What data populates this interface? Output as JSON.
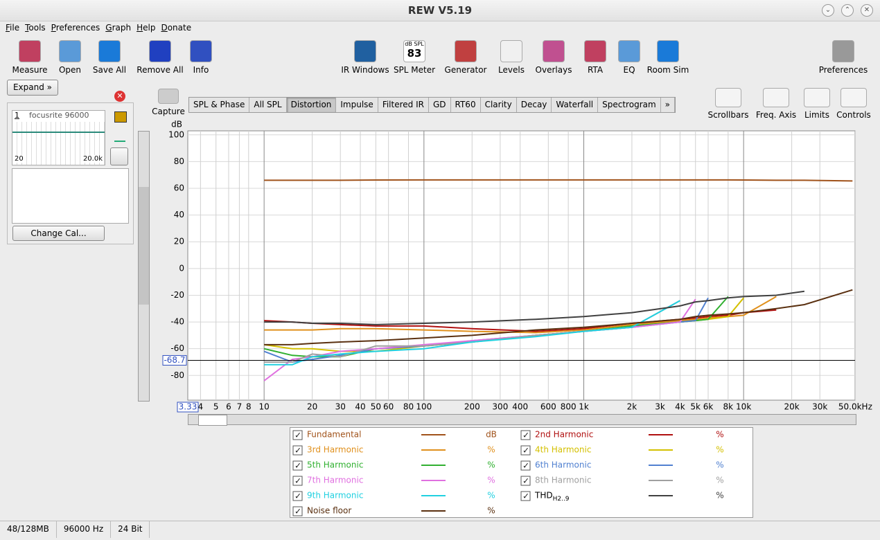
{
  "window": {
    "title": "REW V5.19"
  },
  "menu": [
    "File",
    "Tools",
    "Preferences",
    "Graph",
    "Help",
    "Donate"
  ],
  "toolbar_left": [
    "Measure",
    "Open",
    "Save All",
    "Remove All",
    "Info"
  ],
  "toolbar_mid": [
    "IR Windows",
    "SPL Meter",
    "Generator",
    "Levels",
    "Overlays",
    "RTA",
    "EQ",
    "Room Sim"
  ],
  "toolbar_right": [
    "Preferences"
  ],
  "spl_icon": {
    "label": "dB SPL",
    "value": "83"
  },
  "panel": {
    "expand": "Expand",
    "measurement_index": "1",
    "measurement_name": "focusrite 96000",
    "mini_x_start": "20",
    "mini_x_end": "20.0k",
    "change_cal": "Change Cal..."
  },
  "capture": "Capture",
  "tabs": [
    {
      "label": "SPL & Phase",
      "active": false
    },
    {
      "label": "All SPL",
      "active": false
    },
    {
      "label": "Distortion",
      "active": true
    },
    {
      "label": "Impulse",
      "active": false
    },
    {
      "label": "Filtered IR",
      "active": false
    },
    {
      "label": "GD",
      "active": false
    },
    {
      "label": "RT60",
      "active": false
    },
    {
      "label": "Clarity",
      "active": false
    },
    {
      "label": "Decay",
      "active": false
    },
    {
      "label": "Waterfall",
      "active": false
    },
    {
      "label": "Spectrogram",
      "active": false
    },
    {
      "label": "»",
      "active": false
    }
  ],
  "graph_tools": [
    "Scrollbars",
    "Freq. Axis",
    "Limits",
    "Controls"
  ],
  "status": [
    "48/128MB",
    "96000 Hz",
    "24 Bit"
  ],
  "chart_data": {
    "type": "line",
    "y_label": "dB",
    "x_scale": "log",
    "grid": true,
    "xlim": [
      3.33,
      49800
    ],
    "ylim": [
      -98.5,
      103
    ],
    "yticks": [
      -80,
      -60,
      -40,
      -20,
      0,
      20,
      40,
      60,
      80,
      100
    ],
    "xticks": [
      4,
      5,
      6,
      7,
      8,
      10,
      20,
      30,
      40,
      50,
      60,
      80,
      100,
      200,
      300,
      400,
      600,
      800,
      {
        "value": 1000,
        "label": "1k"
      },
      {
        "value": 2000,
        "label": "2k"
      },
      {
        "value": 3000,
        "label": "3k"
      },
      {
        "value": 4000,
        "label": "4k"
      },
      {
        "value": 5000,
        "label": "5k"
      },
      {
        "value": 6000,
        "label": "6k"
      },
      {
        "value": 8000,
        "label": "8k"
      },
      {
        "value": 10000,
        "label": "10k"
      },
      {
        "value": 20000,
        "label": "20k"
      },
      {
        "value": 30000,
        "label": "30k"
      },
      {
        "value": 50000,
        "label": "50.0kHz"
      }
    ],
    "cursor_y": -68.7,
    "x": [
      10,
      15,
      20,
      30,
      50,
      100,
      200,
      500,
      1000,
      2000,
      4000,
      5000,
      6000,
      8000,
      10000,
      16000,
      24000,
      48000
    ],
    "series": [
      {
        "name": "Fundamental",
        "color": "#a0521a",
        "unit": "dB",
        "values": [
          66,
          66,
          66,
          66,
          66.2,
          66.3,
          66.3,
          66.3,
          66.3,
          66.3,
          66.3,
          66.3,
          66.3,
          66.3,
          66.2,
          66,
          66,
          65.5
        ]
      },
      {
        "name": "2nd Harmonic",
        "color": "#b01010",
        "unit": "%",
        "values": [
          -39,
          -40,
          -41,
          -42,
          -43,
          -43,
          -45,
          -47,
          -45,
          -41,
          -38,
          -37,
          -36,
          -35,
          -33,
          -31,
          null,
          null
        ]
      },
      {
        "name": "3rd Harmonic",
        "color": "#e0901c",
        "unit": "%",
        "values": [
          -46,
          -46,
          -46,
          -45,
          -45,
          -46,
          -47,
          -48,
          -46,
          -42,
          -39,
          -38,
          -37,
          -36,
          -35,
          -21,
          null,
          null
        ]
      },
      {
        "name": "4th Harmonic",
        "color": "#d4c000",
        "unit": "%",
        "values": [
          -57,
          -60,
          -60,
          -62,
          -62,
          -58,
          -55,
          -50,
          -47,
          -43,
          -40,
          -39,
          -38,
          -36,
          -22,
          null,
          null,
          null
        ]
      },
      {
        "name": "5th Harmonic",
        "color": "#30b030",
        "unit": "%",
        "values": [
          -60,
          -65,
          -66,
          -66,
          -60,
          -58,
          -55,
          -50,
          -47,
          -43,
          -40,
          -39,
          -38,
          -21,
          null,
          null,
          null,
          null
        ]
      },
      {
        "name": "6th Harmonic",
        "color": "#5080d0",
        "unit": "%",
        "values": [
          -62,
          -70,
          -68,
          -65,
          -60,
          -58,
          -54,
          -50,
          -47,
          -44,
          -40,
          -39,
          -22,
          null,
          null,
          null,
          null,
          null
        ]
      },
      {
        "name": "7th Harmonic",
        "color": "#e070e0",
        "unit": "%",
        "values": [
          -84,
          -68,
          -66,
          -62,
          -60,
          -57,
          -54,
          -50,
          -47,
          -44,
          -40,
          -23,
          null,
          null,
          null,
          null,
          null,
          null
        ]
      },
      {
        "name": "8th Harmonic",
        "color": "#a0a0a0",
        "unit": "%",
        "values": [
          -70,
          -70,
          -64,
          -66,
          -58,
          -58,
          -55,
          -50,
          -47,
          -44,
          -24,
          null,
          null,
          null,
          null,
          null,
          null,
          null
        ]
      },
      {
        "name": "9th Harmonic",
        "color": "#20d0e0",
        "unit": "%",
        "values": [
          -72,
          -72,
          -66,
          -64,
          -62,
          -60,
          -55,
          -51,
          -47,
          -44,
          -24,
          null,
          null,
          null,
          null,
          null,
          null,
          null
        ]
      },
      {
        "name": "THD",
        "name_sub": "H2..9",
        "color": "#404040",
        "unit": "%",
        "values": [
          -40,
          -40,
          -41,
          -41,
          -42,
          -41,
          -40,
          -38,
          -36,
          -33,
          -28,
          -25,
          -24,
          -22,
          -21,
          -20,
          -17,
          null
        ]
      },
      {
        "name": "Noise floor",
        "color": "#5a3010",
        "unit": "%",
        "values": [
          -57,
          -57,
          -56,
          -55,
          -54,
          -52,
          -50,
          -46,
          -44,
          -41,
          -38,
          -36,
          -35,
          -34,
          -33,
          -30,
          -27,
          -16
        ]
      }
    ]
  }
}
